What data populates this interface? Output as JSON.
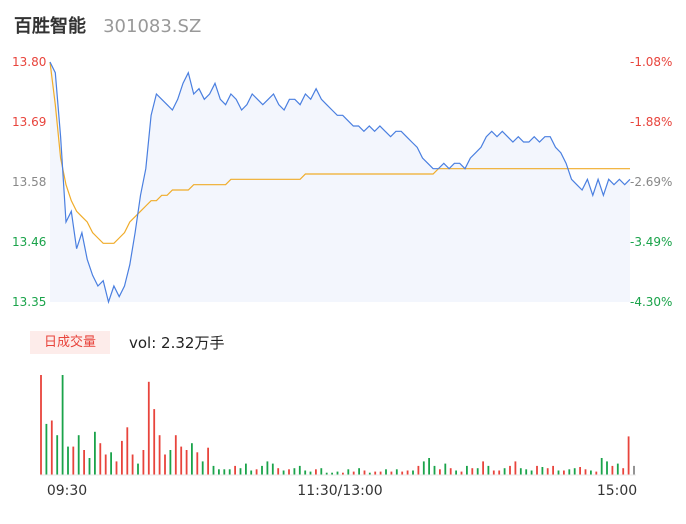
{
  "header": {
    "name": "百胜智能",
    "code": "301083.SZ"
  },
  "volume_panel": {
    "badge": "日成交量",
    "label": "vol: 2.32万手"
  },
  "colors": {
    "price": "#4a7fe0",
    "avg": "#f0ac2a",
    "up": "#e8443c",
    "down": "#1aa34a",
    "neutral": "#888888"
  },
  "chart_data": [
    {
      "type": "line",
      "y_ticks_left": [
        "13.80",
        "13.69",
        "13.58",
        "13.46",
        "13.35"
      ],
      "y_ticks_right": [
        "-1.08%",
        "-1.88%",
        "-2.69%",
        "-3.49%",
        "-4.30%"
      ],
      "ylim": [
        13.35,
        13.8
      ],
      "x_ticks": [
        "09:30",
        "11:30/13:00",
        "15:00"
      ],
      "series": [
        {
          "values": [
            13.8,
            13.78,
            13.66,
            13.5,
            13.52,
            13.45,
            13.48,
            13.43,
            13.4,
            13.38,
            13.39,
            13.35,
            13.38,
            13.36,
            13.38,
            13.42,
            13.48,
            13.55,
            13.6,
            13.7,
            13.74,
            13.73,
            13.72,
            13.71,
            13.73,
            13.76,
            13.78,
            13.74,
            13.75,
            13.73,
            13.74,
            13.76,
            13.73,
            13.72,
            13.74,
            13.73,
            13.71,
            13.72,
            13.74,
            13.73,
            13.72,
            13.73,
            13.74,
            13.72,
            13.71,
            13.73,
            13.73,
            13.72,
            13.74,
            13.73,
            13.75,
            13.73,
            13.72,
            13.71,
            13.7,
            13.7,
            13.69,
            13.68,
            13.68,
            13.67,
            13.68,
            13.67,
            13.68,
            13.67,
            13.66,
            13.67,
            13.67,
            13.66,
            13.65,
            13.64,
            13.62,
            13.61,
            13.6,
            13.6,
            13.61,
            13.6,
            13.61,
            13.61,
            13.6,
            13.62,
            13.63,
            13.64,
            13.66,
            13.67,
            13.66,
            13.67,
            13.66,
            13.65,
            13.66,
            13.65,
            13.65,
            13.66,
            13.65,
            13.66,
            13.66,
            13.64,
            13.63,
            13.61,
            13.58,
            13.57,
            13.56,
            13.58,
            13.55,
            13.58,
            13.55,
            13.58,
            13.57,
            13.58,
            13.57,
            13.58
          ]
        },
        {
          "values": [
            13.8,
            13.72,
            13.62,
            13.57,
            13.54,
            13.52,
            13.51,
            13.5,
            13.48,
            13.47,
            13.46,
            13.46,
            13.46,
            13.47,
            13.48,
            13.5,
            13.51,
            13.52,
            13.53,
            13.54,
            13.54,
            13.55,
            13.55,
            13.56,
            13.56,
            13.56,
            13.56,
            13.57,
            13.57,
            13.57,
            13.57,
            13.57,
            13.57,
            13.57,
            13.58,
            13.58,
            13.58,
            13.58,
            13.58,
            13.58,
            13.58,
            13.58,
            13.58,
            13.58,
            13.58,
            13.58,
            13.58,
            13.58,
            13.59,
            13.59,
            13.59,
            13.59,
            13.59,
            13.59,
            13.59,
            13.59,
            13.59,
            13.59,
            13.59,
            13.59,
            13.59,
            13.59,
            13.59,
            13.59,
            13.59,
            13.59,
            13.59,
            13.59,
            13.59,
            13.59,
            13.59,
            13.59,
            13.59,
            13.6,
            13.6,
            13.6,
            13.6,
            13.6,
            13.6,
            13.6,
            13.6,
            13.6,
            13.6,
            13.6,
            13.6,
            13.6,
            13.6,
            13.6,
            13.6,
            13.6,
            13.6,
            13.6,
            13.6,
            13.6,
            13.6,
            13.6,
            13.6,
            13.6,
            13.6,
            13.6,
            13.6,
            13.6,
            13.6,
            13.6,
            13.6,
            13.6,
            13.6,
            13.6,
            13.6,
            13.6
          ]
        }
      ]
    },
    {
      "type": "bar",
      "values": [
        88,
        45,
        48,
        35,
        88,
        25,
        25,
        35,
        22,
        15,
        38,
        28,
        18,
        20,
        12,
        30,
        42,
        18,
        10,
        22,
        82,
        58,
        35,
        18,
        22,
        35,
        25,
        22,
        28,
        20,
        12,
        24,
        8,
        5,
        5,
        5,
        8,
        6,
        10,
        4,
        5,
        8,
        12,
        10,
        6,
        4,
        5,
        6,
        8,
        4,
        3,
        5,
        6,
        2,
        2,
        3,
        2,
        5,
        3,
        6,
        4,
        2,
        3,
        3,
        5,
        3,
        5,
        3,
        4,
        4,
        8,
        12,
        15,
        8,
        5,
        10,
        6,
        4,
        3,
        8,
        6,
        6,
        12,
        8,
        4,
        4,
        6,
        8,
        12,
        6,
        5,
        4,
        8,
        7,
        6,
        8,
        4,
        4,
        5,
        6,
        7,
        5,
        4,
        3,
        15,
        12,
        8,
        10,
        6,
        34,
        8
      ],
      "colors": [
        "up",
        "down",
        "up",
        "down",
        "down",
        "down",
        "up",
        "down",
        "up",
        "down",
        "down",
        "up",
        "up",
        "down",
        "up",
        "up",
        "up",
        "up",
        "down",
        "up",
        "up",
        "up",
        "up",
        "up",
        "down",
        "up",
        "up",
        "up",
        "down",
        "up",
        "down",
        "up",
        "down",
        "down",
        "down",
        "down",
        "up",
        "down",
        "down",
        "down",
        "up",
        "down",
        "down",
        "down",
        "up",
        "down",
        "up",
        "down",
        "down",
        "down",
        "down",
        "up",
        "down",
        "down",
        "down",
        "down",
        "up",
        "down",
        "up",
        "down",
        "up",
        "down",
        "up",
        "up",
        "down",
        "up",
        "down",
        "up",
        "up",
        "down",
        "up",
        "down",
        "down",
        "down",
        "up",
        "down",
        "up",
        "down",
        "up",
        "down",
        "up",
        "down",
        "up",
        "down",
        "up",
        "up",
        "down",
        "up",
        "up",
        "down",
        "down",
        "down",
        "up",
        "down",
        "up",
        "up",
        "down",
        "up",
        "down",
        "down",
        "up",
        "up",
        "down",
        "up",
        "down",
        "down",
        "up",
        "down",
        "up",
        "up",
        "neutral"
      ]
    }
  ]
}
